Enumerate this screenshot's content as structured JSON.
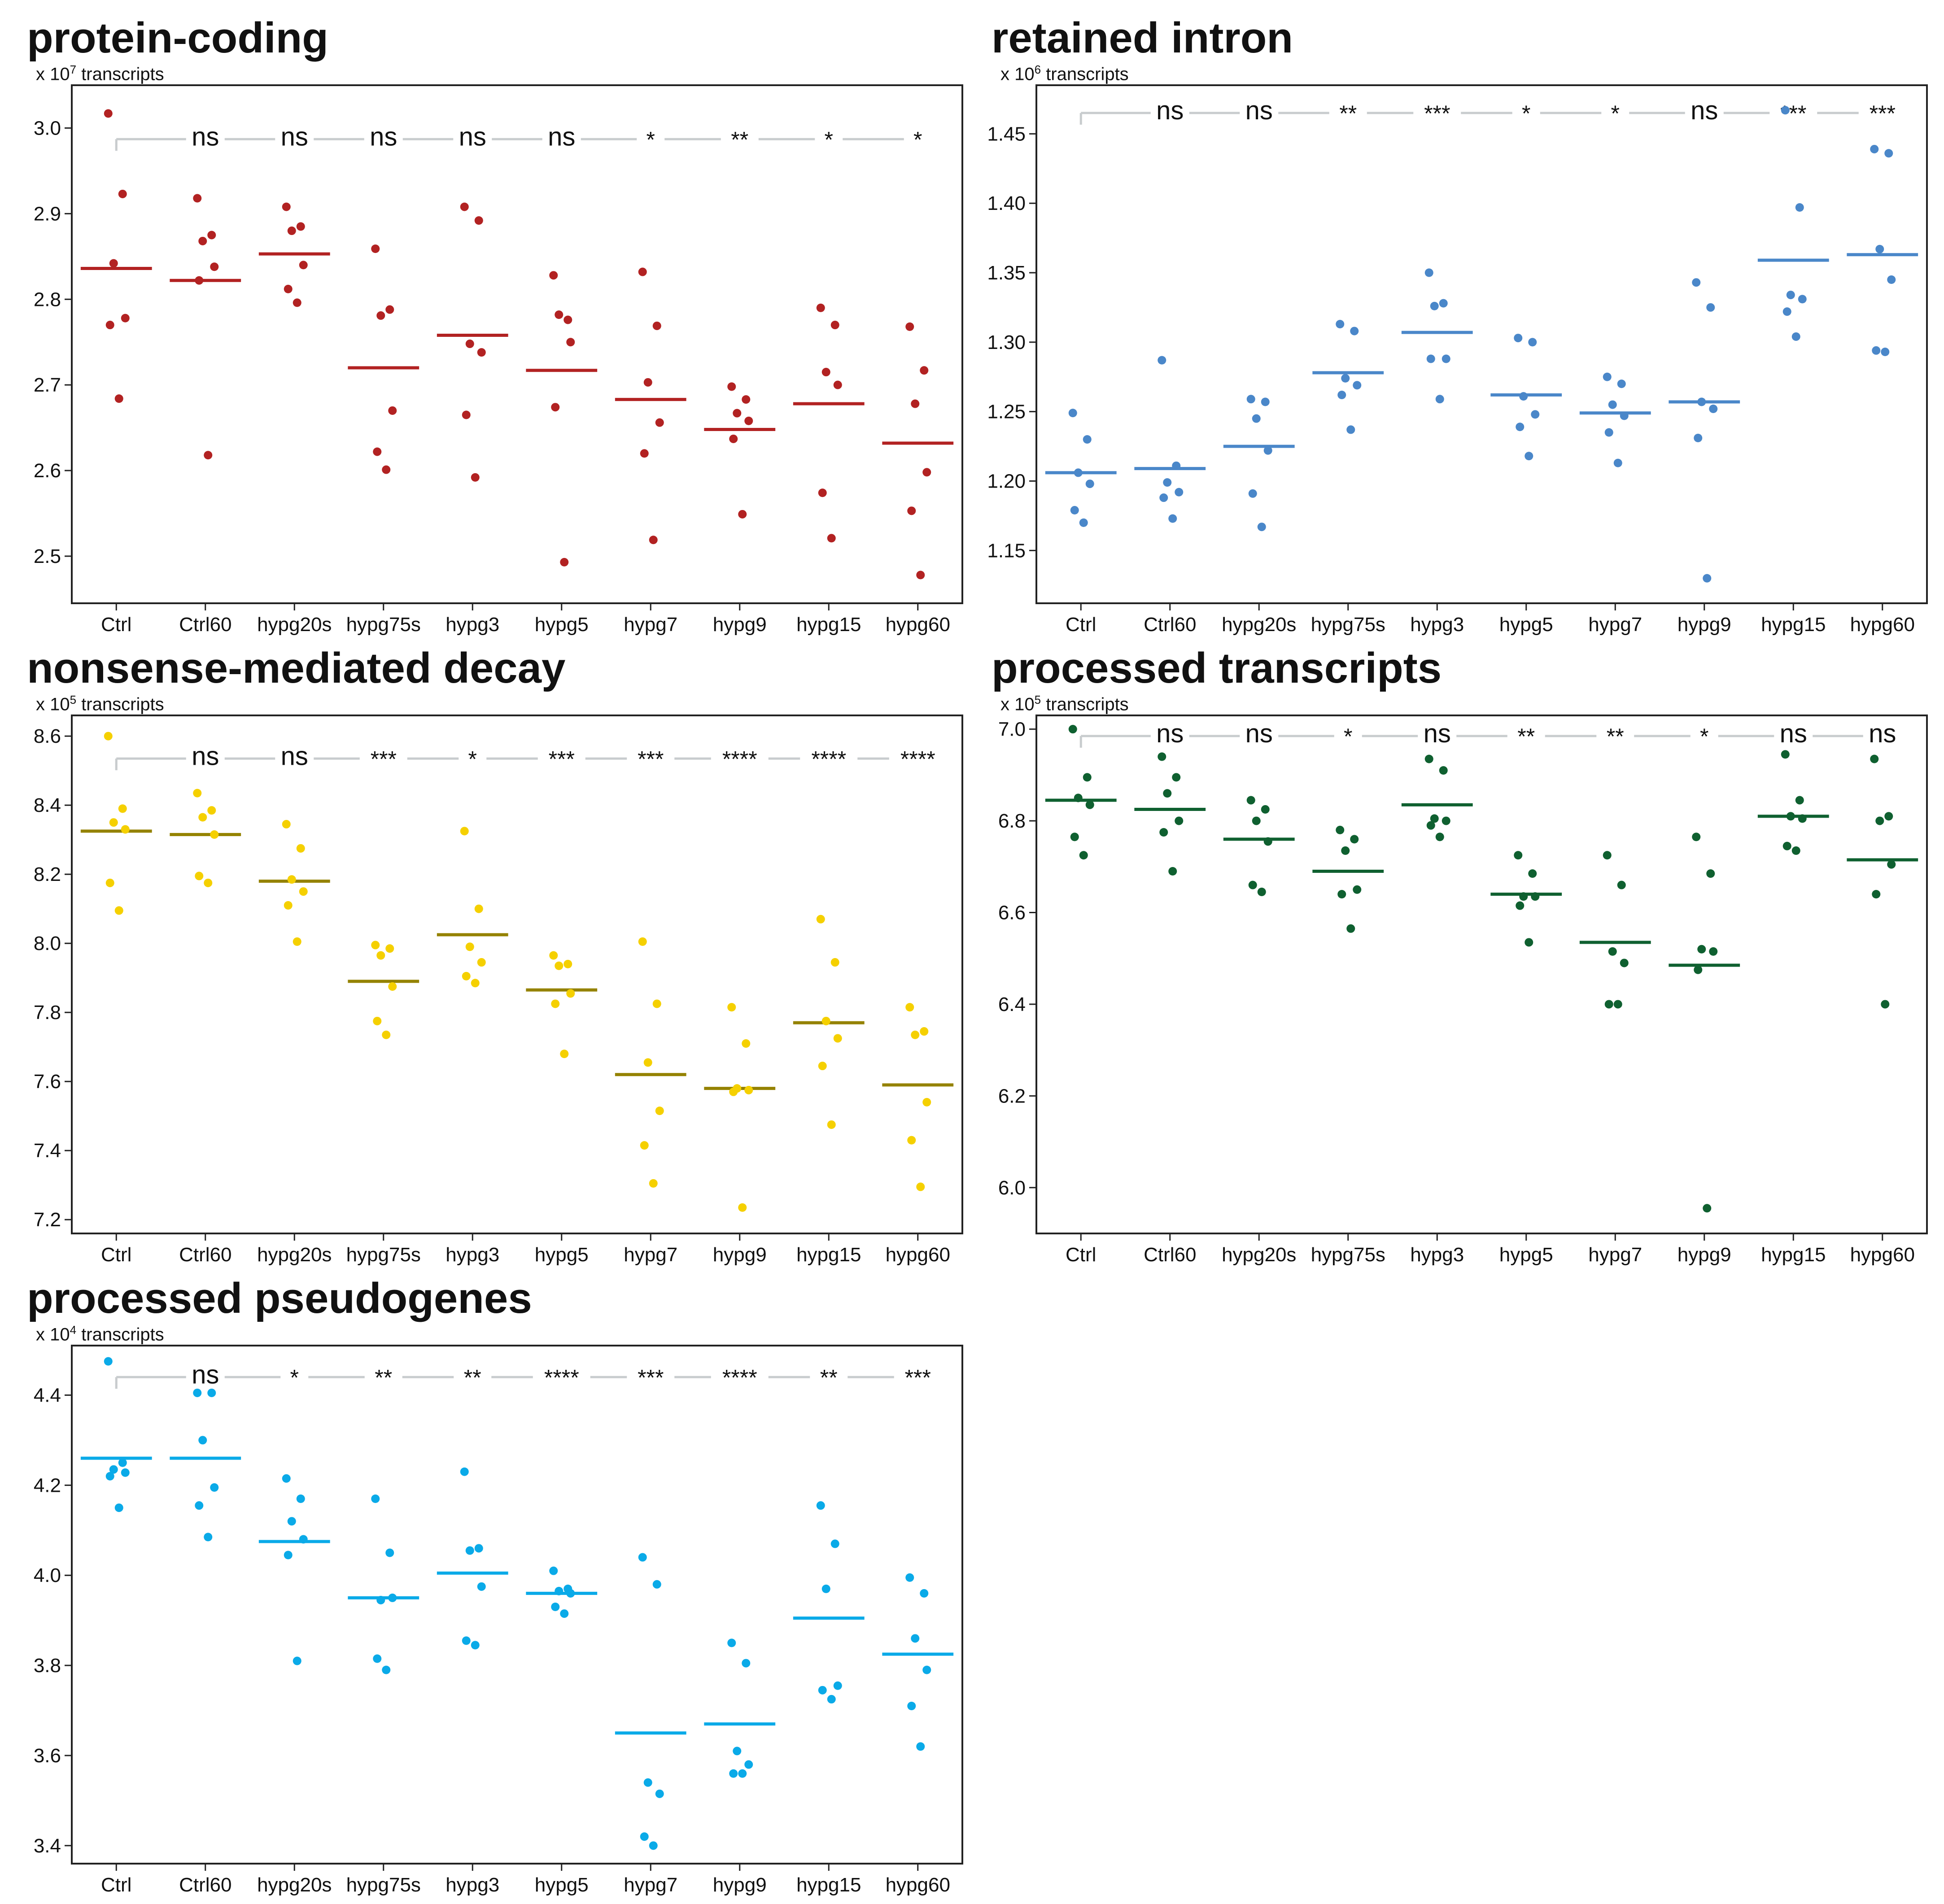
{
  "chart_data": [
    {
      "type": "scatter",
      "id": "protein-coding",
      "title": "protein-coding",
      "unit_prefix": "x 10",
      "unit_exp": "7",
      "unit_suffix": " transcripts",
      "color": "#b22222",
      "mean_color": "#b22222",
      "ylim": [
        2.445,
        3.05
      ],
      "yticks": [
        "2.5",
        "2.6",
        "2.7",
        "2.8",
        "2.9",
        "3.0"
      ],
      "categories": [
        "Ctrl",
        "Ctrl60",
        "hypg20s",
        "hypg75s",
        "hypg3",
        "hypg5",
        "hypg7",
        "hypg9",
        "hypg15",
        "hypg60"
      ],
      "points": [
        [
          3.017,
          2.923,
          2.842,
          2.778,
          2.77,
          2.684
        ],
        [
          2.918,
          2.875,
          2.868,
          2.838,
          2.822,
          2.618
        ],
        [
          2.908,
          2.885,
          2.88,
          2.84,
          2.812,
          2.796
        ],
        [
          2.859,
          2.788,
          2.781,
          2.67,
          2.622,
          2.601
        ],
        [
          2.908,
          2.892,
          2.748,
          2.738,
          2.665,
          2.592
        ],
        [
          2.828,
          2.776,
          2.782,
          2.75,
          2.674,
          2.493
        ],
        [
          2.832,
          2.769,
          2.703,
          2.656,
          2.62,
          2.519
        ],
        [
          2.698,
          2.683,
          2.667,
          2.658,
          2.637,
          2.549
        ],
        [
          2.79,
          2.77,
          2.715,
          2.7,
          2.574,
          2.521
        ],
        [
          2.768,
          2.717,
          2.678,
          2.598,
          2.553,
          2.478
        ]
      ],
      "means": [
        2.836,
        2.822,
        2.853,
        2.72,
        2.758,
        2.717,
        2.683,
        2.648,
        2.678,
        2.632
      ],
      "significance": [
        "ns",
        "ns",
        "ns",
        "ns",
        "ns",
        "*",
        "**",
        "*",
        "*"
      ],
      "bracket_y": 2.987,
      "sig_size": "large"
    },
    {
      "type": "scatter",
      "id": "retained-intron",
      "title": "retained intron",
      "unit_prefix": "x 10",
      "unit_exp": "6",
      "unit_suffix": " transcripts",
      "color": "#4a87c9",
      "mean_color": "#4a87c9",
      "ylim": [
        1.112,
        1.485
      ],
      "yticks": [
        "1.15",
        "1.20",
        "1.25",
        "1.30",
        "1.35",
        "1.40",
        "1.45"
      ],
      "categories": [
        "Ctrl",
        "Ctrl60",
        "hypg20s",
        "hypg75s",
        "hypg3",
        "hypg5",
        "hypg7",
        "hypg9",
        "hypg15",
        "hypg60"
      ],
      "points": [
        [
          1.249,
          1.23,
          1.206,
          1.198,
          1.179,
          1.17
        ],
        [
          1.287,
          1.211,
          1.199,
          1.192,
          1.188,
          1.173
        ],
        [
          1.259,
          1.257,
          1.245,
          1.222,
          1.191,
          1.167
        ],
        [
          1.313,
          1.308,
          1.274,
          1.269,
          1.262,
          1.237
        ],
        [
          1.35,
          1.328,
          1.326,
          1.288,
          1.288,
          1.259
        ],
        [
          1.303,
          1.3,
          1.261,
          1.248,
          1.239,
          1.218
        ],
        [
          1.275,
          1.27,
          1.255,
          1.247,
          1.235,
          1.213
        ],
        [
          1.343,
          1.325,
          1.257,
          1.252,
          1.231,
          1.13
        ],
        [
          1.467,
          1.397,
          1.334,
          1.331,
          1.322,
          1.304
        ],
        [
          1.439,
          1.436,
          1.367,
          1.345,
          1.294,
          1.293
        ]
      ],
      "means": [
        1.206,
        1.209,
        1.225,
        1.278,
        1.307,
        1.262,
        1.249,
        1.257,
        1.359,
        1.363
      ],
      "significance": [
        "ns",
        "ns",
        "**",
        "***",
        "*",
        "*",
        "ns",
        "***",
        "***"
      ],
      "bracket_y": 1.465,
      "sig_size": "large"
    },
    {
      "type": "scatter",
      "id": "nonsense-mediated-decay",
      "title": "nonsense-mediated decay",
      "unit_prefix": "x 10",
      "unit_exp": "5",
      "unit_suffix": " transcripts",
      "color": "#f5d000",
      "mean_color": "#948200",
      "ylim": [
        7.16,
        8.66
      ],
      "yticks": [
        "7.2",
        "7.4",
        "7.6",
        "7.8",
        "8.0",
        "8.2",
        "8.4",
        "8.6"
      ],
      "categories": [
        "Ctrl",
        "Ctrl60",
        "hypg20s",
        "hypg75s",
        "hypg3",
        "hypg5",
        "hypg7",
        "hypg9",
        "hypg15",
        "hypg60"
      ],
      "points": [
        [
          8.6,
          8.39,
          8.35,
          8.33,
          8.175,
          8.095
        ],
        [
          8.435,
          8.385,
          8.365,
          8.315,
          8.195,
          8.175
        ],
        [
          8.345,
          8.275,
          8.185,
          8.15,
          8.11,
          8.005
        ],
        [
          7.995,
          7.985,
          7.965,
          7.875,
          7.775,
          7.735
        ],
        [
          8.325,
          8.1,
          7.99,
          7.945,
          7.905,
          7.885
        ],
        [
          7.965,
          7.94,
          7.935,
          7.855,
          7.825,
          7.68
        ],
        [
          8.005,
          7.825,
          7.655,
          7.515,
          7.415,
          7.305
        ],
        [
          7.815,
          7.71,
          7.58,
          7.575,
          7.57,
          7.235
        ],
        [
          8.07,
          7.945,
          7.775,
          7.725,
          7.645,
          7.475
        ],
        [
          7.815,
          7.745,
          7.735,
          7.54,
          7.43,
          7.295
        ]
      ],
      "means": [
        8.325,
        8.315,
        8.18,
        7.89,
        8.025,
        7.865,
        7.62,
        7.58,
        7.77,
        7.59
      ],
      "significance": [
        "ns",
        "ns",
        "***",
        "*",
        "***",
        "***",
        "****",
        "****",
        "****"
      ],
      "bracket_y": 8.535,
      "sig_size": "large"
    },
    {
      "type": "scatter",
      "id": "processed-transcripts",
      "title": "processed transcripts",
      "unit_prefix": "x 10",
      "unit_exp": "5",
      "unit_suffix": " transcripts",
      "color": "#0f6030",
      "mean_color": "#0f6030",
      "ylim": [
        5.9,
        7.03
      ],
      "yticks": [
        "6.0",
        "6.2",
        "6.4",
        "6.6",
        "6.8",
        "7.0"
      ],
      "categories": [
        "Ctrl",
        "Ctrl60",
        "hypg20s",
        "hypg75s",
        "hypg3",
        "hypg5",
        "hypg7",
        "hypg9",
        "hypg15",
        "hypg60"
      ],
      "points": [
        [
          7.0,
          6.895,
          6.85,
          6.835,
          6.765,
          6.725
        ],
        [
          6.94,
          6.895,
          6.86,
          6.8,
          6.775,
          6.69
        ],
        [
          6.845,
          6.825,
          6.8,
          6.755,
          6.66,
          6.645
        ],
        [
          6.78,
          6.76,
          6.735,
          6.65,
          6.64,
          6.565
        ],
        [
          6.935,
          6.91,
          6.805,
          6.8,
          6.79,
          6.765
        ],
        [
          6.725,
          6.685,
          6.635,
          6.635,
          6.615,
          6.535
        ],
        [
          6.725,
          6.66,
          6.515,
          6.49,
          6.4,
          6.4
        ],
        [
          6.765,
          6.685,
          6.52,
          6.515,
          6.475,
          5.955
        ],
        [
          6.945,
          6.845,
          6.81,
          6.805,
          6.745,
          6.735
        ],
        [
          6.935,
          6.81,
          6.8,
          6.705,
          6.64,
          6.4
        ]
      ],
      "means": [
        6.845,
        6.825,
        6.76,
        6.69,
        6.835,
        6.64,
        6.535,
        6.485,
        6.81,
        6.715
      ],
      "significance": [
        "ns",
        "ns",
        "*",
        "ns",
        "**",
        "**",
        "*",
        "ns",
        "ns"
      ],
      "bracket_y": 6.985,
      "sig_size": "large"
    },
    {
      "type": "scatter",
      "id": "processed-pseudogenes",
      "title": "processed pseudogenes",
      "unit_prefix": "x 10",
      "unit_exp": "4",
      "unit_suffix": " transcripts",
      "color": "#0aaae8",
      "mean_color": "#0aaae8",
      "ylim": [
        3.36,
        4.51
      ],
      "yticks": [
        "3.4",
        "3.6",
        "3.8",
        "4.0",
        "4.2",
        "4.4"
      ],
      "categories": [
        "Ctrl",
        "Ctrl60",
        "hypg20s",
        "hypg75s",
        "hypg3",
        "hypg5",
        "hypg7",
        "hypg9",
        "hypg15",
        "hypg60"
      ],
      "points": [
        [
          4.475,
          4.25,
          4.235,
          4.228,
          4.22,
          4.15
        ],
        [
          4.405,
          4.405,
          4.3,
          4.195,
          4.155,
          4.085
        ],
        [
          4.215,
          4.17,
          4.12,
          4.08,
          4.045,
          3.81
        ],
        [
          4.17,
          4.05,
          3.945,
          3.95,
          3.815,
          3.79
        ],
        [
          4.23,
          4.06,
          4.055,
          3.975,
          3.855,
          3.845
        ],
        [
          4.01,
          3.97,
          3.965,
          3.96,
          3.93,
          3.915
        ],
        [
          4.04,
          3.98,
          3.54,
          3.515,
          3.42,
          3.4
        ],
        [
          3.85,
          3.805,
          3.61,
          3.58,
          3.56,
          3.56
        ],
        [
          4.155,
          4.07,
          3.97,
          3.755,
          3.745,
          3.725
        ],
        [
          3.995,
          3.96,
          3.86,
          3.79,
          3.71,
          3.62
        ]
      ],
      "means": [
        4.26,
        4.26,
        4.075,
        3.95,
        4.005,
        3.96,
        3.65,
        3.67,
        3.905,
        3.825
      ],
      "significance": [
        "ns",
        "*",
        "**",
        "**",
        "****",
        "***",
        "****",
        "**",
        "***"
      ],
      "bracket_y": 4.44,
      "sig_size": "large"
    }
  ]
}
